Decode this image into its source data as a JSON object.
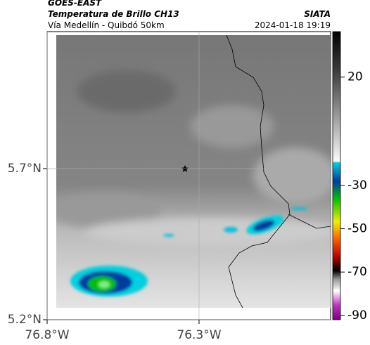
{
  "header": {
    "agency": "GOES-EAST",
    "product": "Temperatura de Brillo CH13",
    "region": "Vía Medellín - Quibdó 50km",
    "source": "SIATA",
    "datetime": "2024-01-18 19:19"
  },
  "map": {
    "lat_range": [
      5.2,
      6.153
    ],
    "lon_range": [
      -76.8,
      -75.867
    ],
    "lat_ticks": [
      {
        "value": 5.7,
        "label": "5.7°N"
      },
      {
        "value": 5.2,
        "label": "5.2°N"
      }
    ],
    "lon_ticks": [
      {
        "value": -76.8,
        "label": "76.8°W"
      },
      {
        "value": -76.3,
        "label": "76.3°W"
      }
    ],
    "colorbar": {
      "range": [
        -92,
        41
      ],
      "ticks": [
        20,
        -30,
        -50,
        -70,
        -90
      ]
    }
  }
}
